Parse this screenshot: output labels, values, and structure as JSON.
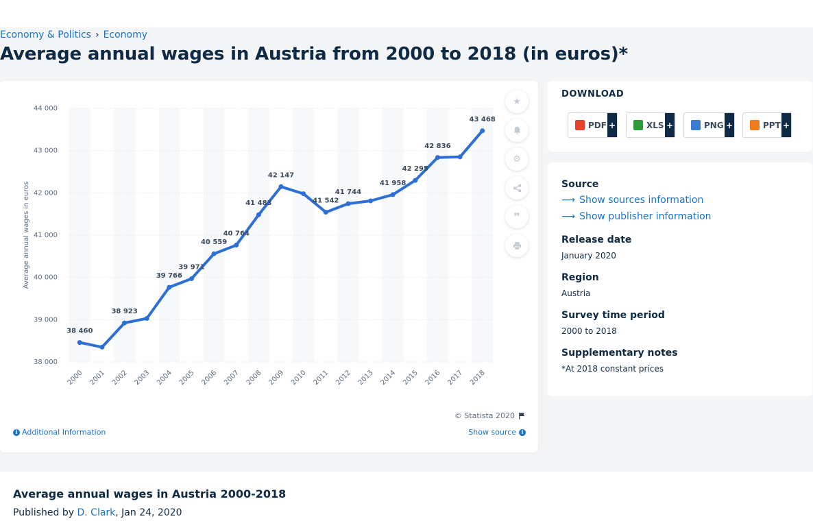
{
  "breadcrumb": {
    "item1": "Economy & Politics",
    "separator": "›",
    "item2": "Economy"
  },
  "page_title": "Average annual wages in Austria from 2000 to 2018 (in euros)*",
  "chart_footer": {
    "copyright": "© Statista 2020",
    "additional_info": "Additional Information",
    "show_source": "Show source"
  },
  "tools": [
    "star-icon",
    "bell-icon",
    "gear-icon",
    "share-icon",
    "quote-icon",
    "print-icon"
  ],
  "download": {
    "title": "DOWNLOAD",
    "buttons": [
      {
        "label": "PDF",
        "plus": "+",
        "color": "#e8412c"
      },
      {
        "label": "XLS",
        "plus": "+",
        "color": "#2e9b3a"
      },
      {
        "label": "PNG",
        "plus": "+",
        "color": "#3a7bd5"
      },
      {
        "label": "PPT",
        "plus": "+",
        "color": "#f07b1c"
      }
    ]
  },
  "meta": {
    "source_label": "Source",
    "sources_link": "Show sources information",
    "publisher_link": "Show publisher information",
    "release_label": "Release date",
    "release_value": "January 2020",
    "region_label": "Region",
    "region_value": "Austria",
    "survey_label": "Survey time period",
    "survey_value": "2000 to 2018",
    "notes_label": "Supplementary notes",
    "notes_value": "*At 2018 constant prices"
  },
  "bottom": {
    "title": "Average annual wages in Austria 2000-2018",
    "published_prefix": "Published by",
    "author": "D. Clark",
    "date": ", Jan 24, 2020"
  },
  "chart_data": {
    "type": "line",
    "x": [
      "2000",
      "2001",
      "2002",
      "2003",
      "2004",
      "2005",
      "2006",
      "2007",
      "2008",
      "2009",
      "2010",
      "2011",
      "2012",
      "2013",
      "2014",
      "2015",
      "2016",
      "2017",
      "2018"
    ],
    "values": [
      38460,
      38350,
      38923,
      39030,
      39766,
      39971,
      40559,
      40764,
      41483,
      42147,
      41980,
      41542,
      41744,
      41810,
      41958,
      42295,
      42836,
      42850,
      43468
    ],
    "data_labels": [
      "38 460",
      "",
      "38 923",
      "",
      "39 766",
      "39 971",
      "40 559",
      "40 764",
      "41 483",
      "42 147",
      "",
      "41 542",
      "41 744",
      "",
      "41 958",
      "42 295",
      "42 836",
      "",
      "43 468"
    ],
    "ylabel": "Average annual wages in euros",
    "ylim": [
      38000,
      44000
    ],
    "yticks": [
      38000,
      39000,
      40000,
      41000,
      42000,
      43000,
      44000
    ],
    "ytick_labels": [
      "38 000",
      "39 000",
      "40 000",
      "41 000",
      "42 000",
      "43 000",
      "44 000"
    ],
    "line_color": "#2d6fd6",
    "grid": true
  }
}
